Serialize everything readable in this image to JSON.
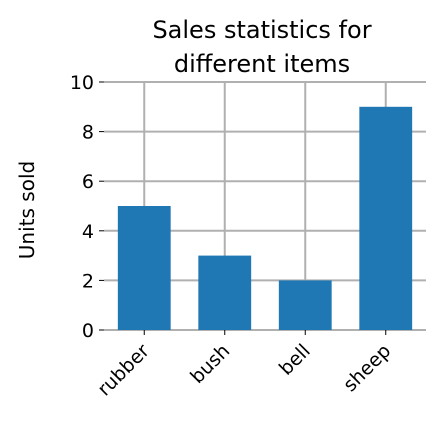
{
  "chart_data": {
    "type": "bar",
    "title": [
      "Sales statistics for",
      "different items"
    ],
    "xlabel": "",
    "ylabel": "Units sold",
    "categories": [
      "rubber",
      "bush",
      "bell",
      "sheep"
    ],
    "values": [
      5,
      3,
      2,
      9
    ],
    "ylim": [
      0,
      10
    ],
    "yticks": [
      "0",
      "2",
      "4",
      "6",
      "8",
      "10"
    ],
    "grid": true,
    "bar_color": "#1f77b4",
    "grid_color": "#b0b0b0"
  }
}
